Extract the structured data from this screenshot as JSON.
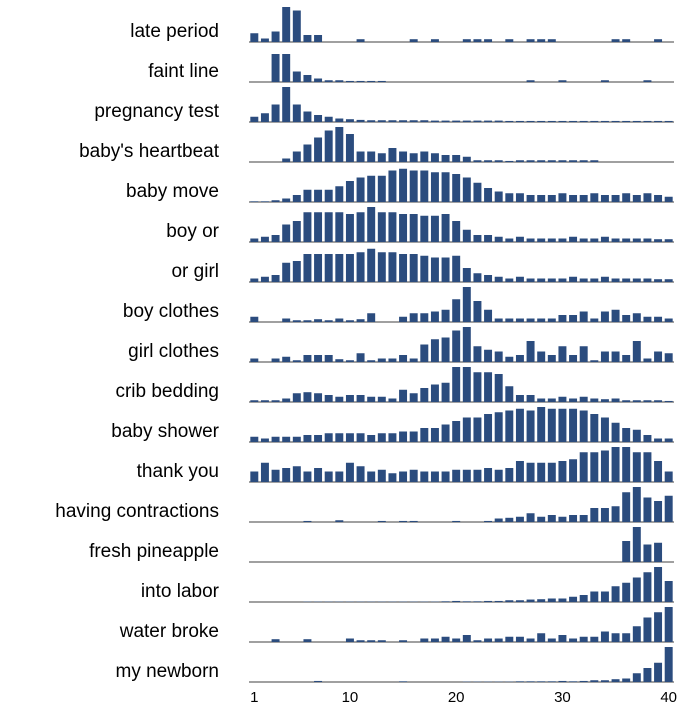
{
  "chart_data": {
    "type": "bar",
    "color": "#2b4c7e",
    "x": [
      1,
      2,
      3,
      4,
      5,
      6,
      7,
      8,
      9,
      10,
      11,
      12,
      13,
      14,
      15,
      16,
      17,
      18,
      19,
      20,
      21,
      22,
      23,
      24,
      25,
      26,
      27,
      28,
      29,
      30,
      31,
      32,
      33,
      34,
      35,
      36,
      37,
      38,
      39,
      40
    ],
    "xlim": [
      0.5,
      40.5
    ],
    "xticks": [
      1,
      10,
      20,
      30,
      40
    ],
    "ylim": [
      0,
      10
    ],
    "series": [
      {
        "name": "late period",
        "values": [
          2.5,
          1,
          3,
          10,
          9,
          2,
          2,
          0,
          0,
          0,
          0.8,
          0,
          0,
          0,
          0,
          0.8,
          0,
          0.8,
          0,
          0,
          0.8,
          0.8,
          0.8,
          0,
          0.8,
          0,
          0.8,
          0.8,
          0.8,
          0,
          0,
          0,
          0,
          0,
          0.8,
          0.8,
          0,
          0,
          0.8,
          0
        ]
      },
      {
        "name": "faint line",
        "values": [
          0,
          0,
          8,
          8,
          3,
          2,
          1,
          0.5,
          0.5,
          0.3,
          0.3,
          0.3,
          0.3,
          0,
          0,
          0,
          0,
          0,
          0,
          0,
          0,
          0,
          0,
          0,
          0,
          0,
          0.5,
          0,
          0,
          0.5,
          0,
          0,
          0,
          0.5,
          0,
          0,
          0,
          0.5,
          0,
          0
        ]
      },
      {
        "name": "pregnancy test",
        "values": [
          1.5,
          2.5,
          5,
          10,
          5,
          3,
          2,
          1.5,
          1,
          0.8,
          0.6,
          0.5,
          0.5,
          0.5,
          0.5,
          0.5,
          0.5,
          0.4,
          0.4,
          0.4,
          0.4,
          0.4,
          0.4,
          0.4,
          0.3,
          0.3,
          0.3,
          0.3,
          0.3,
          0.3,
          0.3,
          0.3,
          0.3,
          0.3,
          0.3,
          0.3,
          0.3,
          0.3,
          0.3,
          0.3
        ]
      },
      {
        "name": "baby's heartbeat",
        "values": [
          0,
          0,
          0,
          1,
          3,
          5,
          7,
          9,
          10,
          8,
          3,
          3,
          2.5,
          4,
          3,
          2.5,
          3,
          2.5,
          2,
          2,
          1.5,
          0.5,
          0.5,
          0.5,
          0.3,
          0.5,
          0.5,
          0.5,
          0.5,
          0.5,
          0.5,
          0.5,
          0.5,
          0,
          0,
          0,
          0,
          0,
          0,
          0
        ]
      },
      {
        "name": "baby move",
        "values": [
          0.2,
          0.2,
          0.5,
          1,
          2,
          3.5,
          3.5,
          3.5,
          4.5,
          6,
          7,
          7.5,
          7.5,
          9,
          9.5,
          9,
          9,
          8.5,
          8.5,
          8,
          7,
          5.5,
          4,
          3,
          2.5,
          2.5,
          2,
          2,
          2,
          2.5,
          2,
          2,
          2.5,
          2,
          2,
          2.5,
          2,
          2.5,
          2,
          1.5
        ]
      },
      {
        "name": "boy or",
        "values": [
          1,
          1.5,
          2,
          5,
          6,
          8.5,
          8.5,
          8.5,
          8.5,
          8,
          8.5,
          10,
          8.5,
          8.5,
          8,
          8,
          7.5,
          7.5,
          8,
          6,
          3.5,
          2,
          2,
          1.5,
          1,
          1.5,
          1,
          1,
          1,
          1,
          1.5,
          1,
          1,
          1.5,
          1,
          1,
          1,
          1,
          0.8,
          0.8
        ]
      },
      {
        "name": "or girl",
        "values": [
          1,
          1.5,
          2,
          5.5,
          6,
          8,
          8,
          8,
          8,
          8,
          8.5,
          9.5,
          8.5,
          8.5,
          8,
          8,
          7.5,
          7,
          7,
          7.5,
          4,
          2.5,
          2,
          1.5,
          1,
          1.5,
          1,
          1,
          1,
          1,
          1.5,
          1,
          1,
          1.5,
          1,
          1,
          1,
          1,
          0.8,
          0.8
        ]
      },
      {
        "name": "boy clothes",
        "values": [
          1.5,
          0,
          0,
          1,
          0.5,
          0.5,
          0.8,
          0.5,
          1,
          0.5,
          0.8,
          2.5,
          0,
          0,
          1.5,
          2.5,
          2.5,
          3,
          3.5,
          6.5,
          10,
          6,
          3.5,
          1,
          1,
          1,
          1,
          1,
          1,
          2,
          2,
          3,
          1,
          3,
          3.5,
          2,
          2.5,
          1.5,
          1.5,
          1
        ]
      },
      {
        "name": "girl clothes",
        "values": [
          1,
          0,
          1,
          1.5,
          0.5,
          2,
          2,
          2,
          0.8,
          0.5,
          2.5,
          0.5,
          1,
          1,
          2,
          1,
          5,
          6.5,
          7,
          9,
          10,
          4.5,
          3.5,
          3,
          1.5,
          2,
          6,
          3,
          2,
          4.5,
          2,
          4.5,
          0.5,
          3,
          3,
          2,
          6,
          1,
          3,
          2.5
        ]
      },
      {
        "name": "crib bedding",
        "values": [
          0.5,
          0.5,
          0.5,
          1,
          2.5,
          2.8,
          2.5,
          2,
          1.5,
          2,
          2,
          1.5,
          1.5,
          1,
          3.5,
          2.5,
          4,
          5,
          5.5,
          10,
          10,
          8.5,
          8.5,
          8,
          4.5,
          2,
          2,
          1,
          1,
          1.5,
          1,
          1.5,
          1,
          0.8,
          1,
          0.5,
          0.5,
          0.5,
          0.5,
          0.3
        ]
      },
      {
        "name": "baby shower",
        "values": [
          1.5,
          1,
          1.5,
          1.5,
          1.5,
          2,
          2,
          2.5,
          2.5,
          2.5,
          2.5,
          2,
          2.5,
          2.5,
          3,
          3,
          4,
          4,
          5,
          6,
          7,
          7,
          8,
          8.5,
          9,
          9.5,
          9,
          10,
          9.5,
          9.5,
          9.5,
          9,
          8,
          7,
          5.5,
          4,
          3.5,
          2,
          1,
          1
        ]
      },
      {
        "name": "thank you",
        "values": [
          3,
          5.5,
          3.5,
          4,
          4.5,
          3,
          4,
          3,
          3,
          5.5,
          4.5,
          3,
          3.5,
          2.5,
          3,
          3.5,
          3,
          3,
          3,
          3.5,
          3.5,
          3.5,
          4,
          3.5,
          4,
          6,
          5.5,
          5.5,
          5.5,
          6,
          6.5,
          8.5,
          8.5,
          9,
          10,
          10,
          8.5,
          8.5,
          6,
          3
        ]
      },
      {
        "name": "having contractions",
        "values": [
          0,
          0,
          0,
          0,
          0,
          0.3,
          0,
          0,
          0.5,
          0,
          0,
          0,
          0.3,
          0,
          0.3,
          0.3,
          0,
          0,
          0,
          0.3,
          0,
          0,
          0.3,
          1,
          1.2,
          1.5,
          2.5,
          1.5,
          2,
          1.5,
          2,
          2,
          4,
          4,
          4.5,
          8.5,
          10,
          7,
          6,
          7.5
        ]
      },
      {
        "name": "fresh pineapple",
        "values": [
          0,
          0,
          0,
          0,
          0,
          0,
          0,
          0,
          0,
          0,
          0,
          0,
          0,
          0,
          0,
          0,
          0,
          0,
          0,
          0,
          0,
          0,
          0,
          0,
          0,
          0,
          0,
          0,
          0,
          0,
          0,
          0,
          0,
          0,
          0,
          6,
          10,
          5,
          5.5,
          0
        ]
      },
      {
        "name": "into labor",
        "values": [
          0,
          0,
          0,
          0,
          0,
          0.1,
          0.1,
          0.1,
          0.1,
          0.1,
          0.1,
          0.1,
          0.1,
          0.1,
          0.1,
          0.1,
          0.1,
          0.1,
          0.2,
          0.3,
          0.2,
          0.2,
          0.3,
          0.3,
          0.5,
          0.5,
          0.7,
          0.8,
          1,
          1,
          1.5,
          2,
          3,
          3,
          4.5,
          5.5,
          7,
          8.5,
          10,
          6
        ]
      },
      {
        "name": "water broke",
        "values": [
          0,
          0,
          0.8,
          0,
          0,
          0.8,
          0,
          0,
          0,
          1,
          0.5,
          0.5,
          0.5,
          0,
          0.5,
          0,
          1,
          1,
          1.5,
          1,
          2,
          0.5,
          1,
          1,
          1.5,
          1.5,
          1,
          2.5,
          1,
          2,
          1,
          1.5,
          1.5,
          3,
          2.5,
          2.5,
          4.5,
          7,
          8.5,
          10
        ]
      },
      {
        "name": "my newborn",
        "values": [
          0,
          0,
          0,
          0,
          0,
          0,
          0.3,
          0,
          0,
          0,
          0,
          0,
          0,
          0,
          0.2,
          0,
          0,
          0,
          0,
          0,
          0.1,
          0.1,
          0.1,
          0.1,
          0.1,
          0.2,
          0.2,
          0.2,
          0.2,
          0.3,
          0.2,
          0.3,
          0.5,
          0.5,
          0.8,
          1,
          2.5,
          4,
          5.5,
          10
        ]
      }
    ]
  }
}
